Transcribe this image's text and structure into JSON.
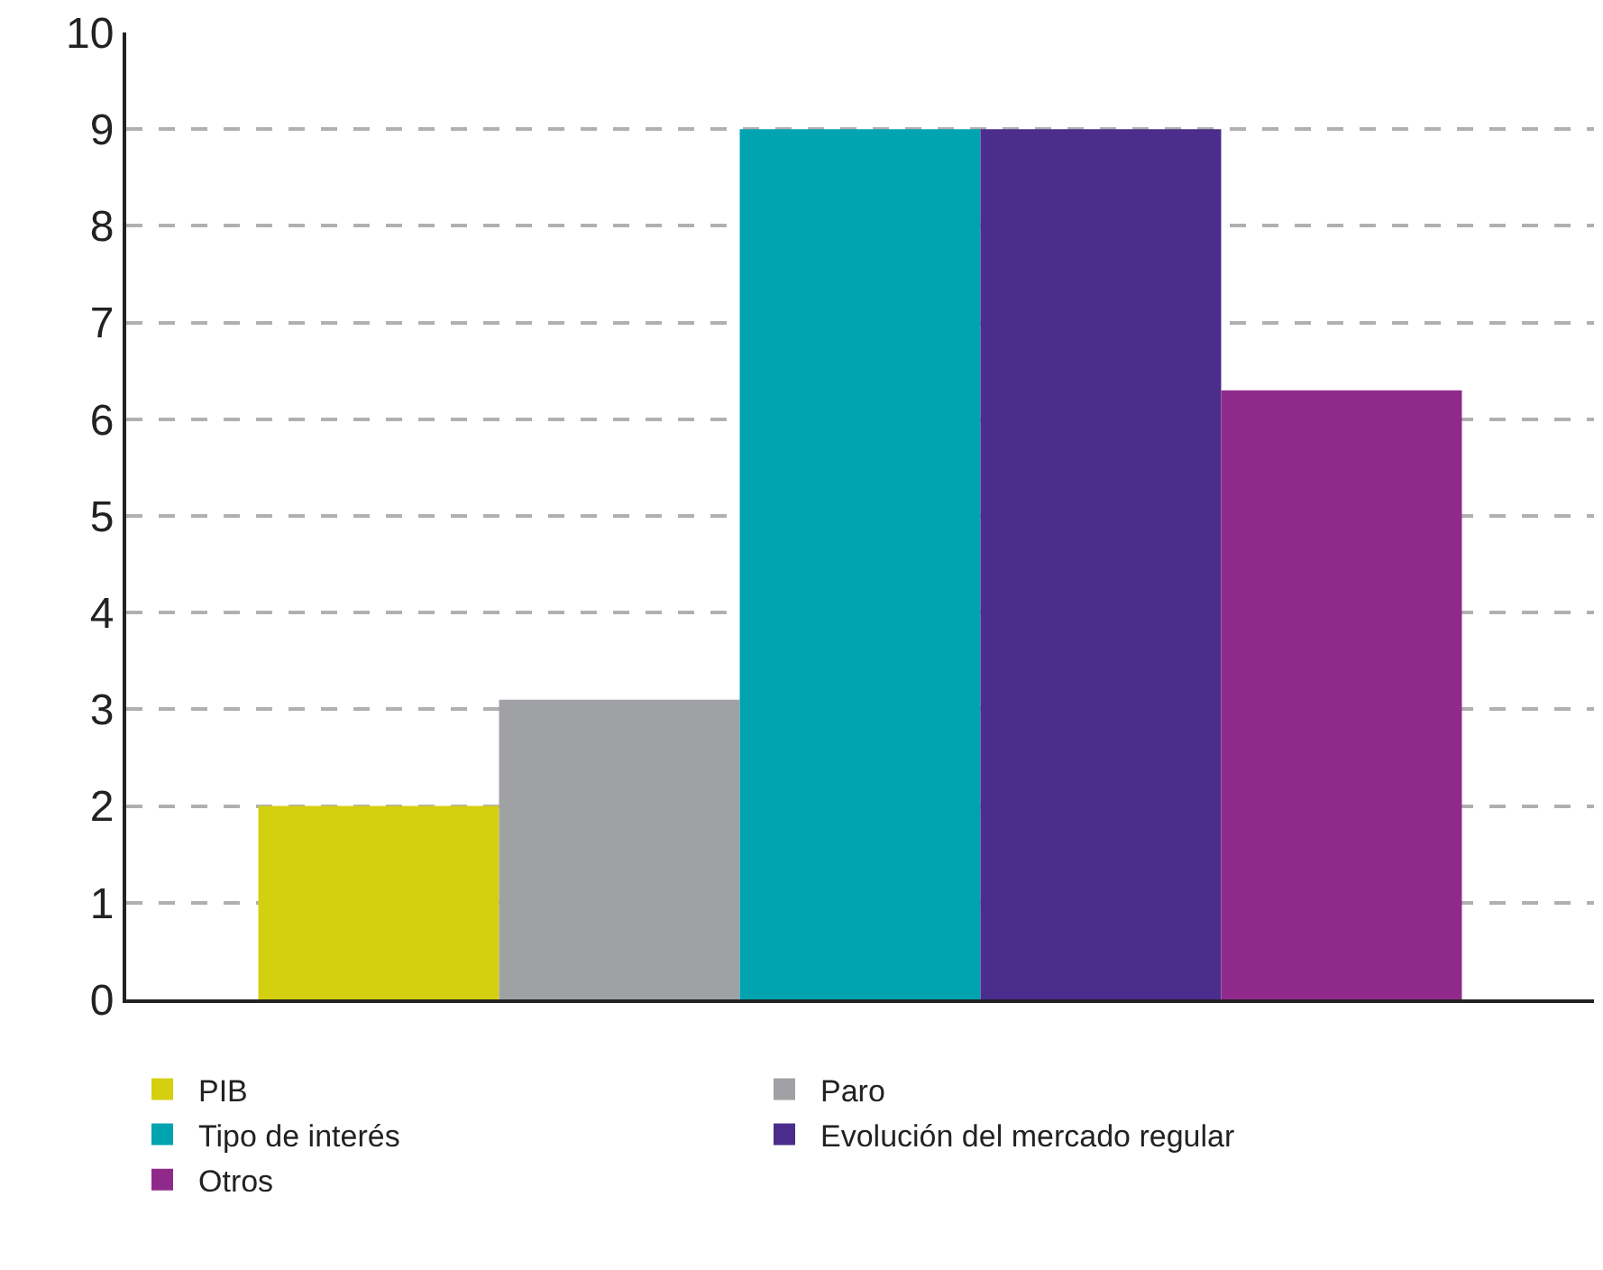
{
  "chart_data": {
    "type": "bar",
    "categories": [
      null
    ],
    "series": [
      {
        "name": "PIB",
        "color": "#d4cf0f",
        "values": [
          2
        ]
      },
      {
        "name": "Paro",
        "color": "#a0a1a5",
        "values": [
          3.1
        ]
      },
      {
        "name": "Tipo de interés",
        "color": "#00a3b0",
        "values": [
          9
        ]
      },
      {
        "name": "Evolución del mercado regular",
        "color": "#4a2d8c",
        "values": [
          9
        ]
      },
      {
        "name": "Otros",
        "color": "#902a8a",
        "values": [
          6.3
        ]
      }
    ],
    "ylim": [
      0,
      10
    ],
    "yticks": [
      0,
      1,
      2,
      3,
      4,
      5,
      6,
      7,
      8,
      9,
      10
    ],
    "grid": "y",
    "legend": "bottom"
  }
}
